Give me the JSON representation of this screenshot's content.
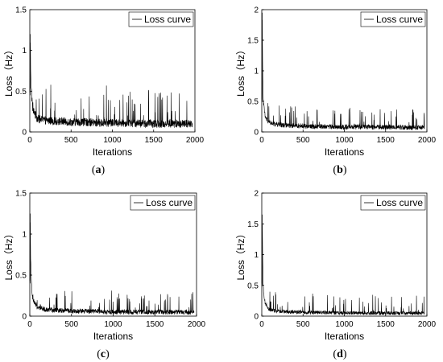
{
  "chart_data": [
    {
      "type": "line",
      "panel_label": "a",
      "xlabel": "Iterations",
      "ylabel": "Loss（Hz）",
      "xlim": [
        0,
        2000
      ],
      "ylim": [
        0,
        1.5
      ],
      "xticks": [
        "0",
        "500",
        "1000",
        "1500",
        "2000"
      ],
      "yticks": [
        "0",
        "0.5",
        "1",
        "1.5"
      ],
      "legend": "top-right",
      "series": [
        {
          "name": "Loss curve",
          "color": "#000000",
          "x": [
            0,
            5,
            10,
            15,
            20,
            30,
            40,
            60,
            80,
            100,
            150,
            200,
            250,
            300,
            400,
            500,
            600,
            700,
            800,
            900,
            1000,
            1200,
            1400,
            1600,
            1800,
            1970
          ],
          "y": [
            0.45,
            1.2,
            0.8,
            0.6,
            0.5,
            0.35,
            0.28,
            0.22,
            0.18,
            0.16,
            0.15,
            0.14,
            0.14,
            0.13,
            0.13,
            0.12,
            0.12,
            0.12,
            0.11,
            0.11,
            0.11,
            0.11,
            0.1,
            0.1,
            0.1,
            0.1
          ],
          "spike_peak": 0.42,
          "noise": 0.05
        }
      ]
    },
    {
      "type": "line",
      "panel_label": "b",
      "xlabel": "Iterations",
      "ylabel": "Loss（Hz）",
      "xlim": [
        0,
        2000
      ],
      "ylim": [
        0,
        2
      ],
      "xticks": [
        "0",
        "500",
        "1000",
        "1500",
        "2000"
      ],
      "yticks": [
        "0",
        "0.5",
        "1",
        "1.5",
        "2"
      ],
      "legend": "top-right",
      "series": [
        {
          "name": "Loss curve",
          "color": "#000000",
          "x": [
            0,
            5,
            10,
            15,
            20,
            30,
            40,
            60,
            80,
            100,
            150,
            200,
            250,
            300,
            400,
            500,
            600,
            700,
            800,
            900,
            1000,
            1200,
            1400,
            1600,
            1800,
            1970
          ],
          "y": [
            0.5,
            1.95,
            1.1,
            0.7,
            0.5,
            0.35,
            0.25,
            0.2,
            0.17,
            0.15,
            0.13,
            0.12,
            0.11,
            0.11,
            0.1,
            0.1,
            0.09,
            0.09,
            0.09,
            0.08,
            0.08,
            0.08,
            0.08,
            0.08,
            0.07,
            0.07
          ],
          "spike_peak": 0.35,
          "noise": 0.04
        }
      ]
    },
    {
      "type": "line",
      "panel_label": "c",
      "xlabel": "Iterations",
      "ylabel": "Loss（Hz）",
      "xlim": [
        0,
        2000
      ],
      "ylim": [
        0,
        1.5
      ],
      "xticks": [
        "0",
        "500",
        "1000",
        "1500",
        "2000"
      ],
      "yticks": [
        "0",
        "0.5",
        "1",
        "1.5"
      ],
      "legend": "top-right",
      "series": [
        {
          "name": "Loss curve",
          "color": "#000000",
          "x": [
            0,
            5,
            10,
            15,
            20,
            30,
            40,
            60,
            80,
            100,
            150,
            200,
            250,
            300,
            400,
            500,
            600,
            700,
            800,
            900,
            1000,
            1200,
            1400,
            1600,
            1800,
            1970
          ],
          "y": [
            0.4,
            1.25,
            0.7,
            0.5,
            0.4,
            0.28,
            0.2,
            0.15,
            0.12,
            0.1,
            0.09,
            0.08,
            0.08,
            0.07,
            0.07,
            0.06,
            0.06,
            0.06,
            0.06,
            0.05,
            0.05,
            0.05,
            0.05,
            0.05,
            0.05,
            0.05
          ],
          "spike_peak": 0.25,
          "noise": 0.03
        }
      ]
    },
    {
      "type": "line",
      "panel_label": "d",
      "xlabel": "Iterations",
      "ylabel": "Loss（Hz）",
      "xlim": [
        0,
        2000
      ],
      "ylim": [
        0,
        2
      ],
      "xticks": [
        "0",
        "500",
        "1000",
        "1500",
        "2000"
      ],
      "yticks": [
        "0",
        "0.5",
        "1",
        "1.5",
        "2"
      ],
      "legend": "top-right",
      "series": [
        {
          "name": "Loss curve",
          "color": "#000000",
          "x": [
            0,
            5,
            10,
            15,
            20,
            30,
            40,
            60,
            80,
            100,
            150,
            200,
            250,
            300,
            400,
            500,
            600,
            700,
            800,
            900,
            1000,
            1200,
            1400,
            1600,
            1800,
            1970
          ],
          "y": [
            0.5,
            1.65,
            1.0,
            0.6,
            0.45,
            0.3,
            0.2,
            0.15,
            0.12,
            0.1,
            0.09,
            0.08,
            0.08,
            0.07,
            0.07,
            0.06,
            0.06,
            0.06,
            0.06,
            0.05,
            0.05,
            0.05,
            0.05,
            0.05,
            0.05,
            0.05
          ],
          "spike_peak": 0.3,
          "noise": 0.03
        }
      ]
    }
  ]
}
